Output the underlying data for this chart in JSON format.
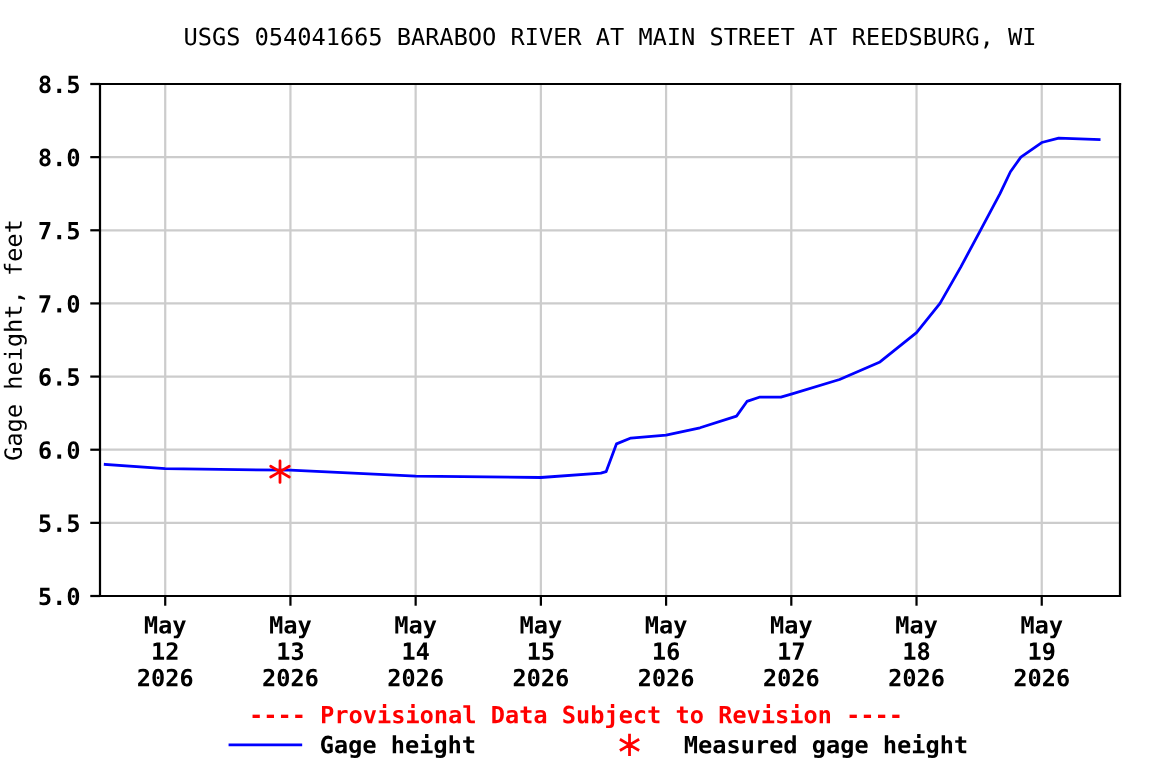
{
  "chart_data": {
    "type": "line",
    "title": "USGS 054041665 BARABOO RIVER AT MAIN STREET AT REEDSBURG, WI",
    "ylabel": "Gage height, feet",
    "xlim": [
      "2026-05-11T11:30",
      "2026-05-19T15:00"
    ],
    "xticks": [
      {
        "value": "2026-05-12",
        "label": "May\n12\n2026"
      },
      {
        "value": "2026-05-13",
        "label": "May\n13\n2026"
      },
      {
        "value": "2026-05-14",
        "label": "May\n14\n2026"
      },
      {
        "value": "2026-05-15",
        "label": "May\n15\n2026"
      },
      {
        "value": "2026-05-16",
        "label": "May\n16\n2026"
      },
      {
        "value": "2026-05-17",
        "label": "May\n17\n2026"
      },
      {
        "value": "2026-05-18",
        "label": "May\n18\n2026"
      },
      {
        "value": "2026-05-19",
        "label": "May\n19\n2026"
      }
    ],
    "ylim": [
      5.0,
      8.5
    ],
    "yticks": [
      {
        "value": 5.0,
        "label": "5.0"
      },
      {
        "value": 5.5,
        "label": "5.5"
      },
      {
        "value": 6.0,
        "label": "6.0"
      },
      {
        "value": 6.5,
        "label": "6.5"
      },
      {
        "value": 7.0,
        "label": "7.0"
      },
      {
        "value": 7.5,
        "label": "7.5"
      },
      {
        "value": 8.0,
        "label": "8.0"
      },
      {
        "value": 8.5,
        "label": "8.5"
      }
    ],
    "grid": true,
    "legend": "bottom",
    "annotations": [
      "---- Provisional Data Subject to Revision ----"
    ],
    "series": [
      {
        "name": "Gage height",
        "color": "#0000ff",
        "x": [
          "2026-05-11T12:30",
          "2026-05-12T00:00",
          "2026-05-13T00:00",
          "2026-05-14T00:00",
          "2026-05-15T00:00",
          "2026-05-15T11:30",
          "2026-05-15T12:30",
          "2026-05-15T14:30",
          "2026-05-15T17:15",
          "2026-05-16T00:00",
          "2026-05-16T06:30",
          "2026-05-16T13:30",
          "2026-05-16T15:30",
          "2026-05-16T18:00",
          "2026-05-16T22:00",
          "2026-05-17T00:00",
          "2026-05-17T09:15",
          "2026-05-17T17:00",
          "2026-05-18T00:00",
          "2026-05-18T04:30",
          "2026-05-18T08:30",
          "2026-05-18T12:15",
          "2026-05-18T16:00",
          "2026-05-18T18:00",
          "2026-05-18T20:00",
          "2026-05-19T00:00",
          "2026-05-19T03:15",
          "2026-05-19T11:00"
        ],
        "values": [
          5.9,
          5.87,
          5.86,
          5.82,
          5.81,
          5.84,
          5.85,
          6.04,
          6.08,
          6.1,
          6.15,
          6.23,
          6.33,
          6.36,
          6.36,
          6.38,
          6.48,
          6.6,
          6.8,
          7.0,
          7.25,
          7.5,
          7.75,
          7.9,
          8.0,
          8.1,
          8.13,
          8.12
        ]
      },
      {
        "name": "Measured gage height",
        "type": "scatter",
        "marker": "cross",
        "color": "#ff0000",
        "x": [
          "2026-05-12T22:00"
        ],
        "values": [
          5.85
        ]
      }
    ]
  }
}
